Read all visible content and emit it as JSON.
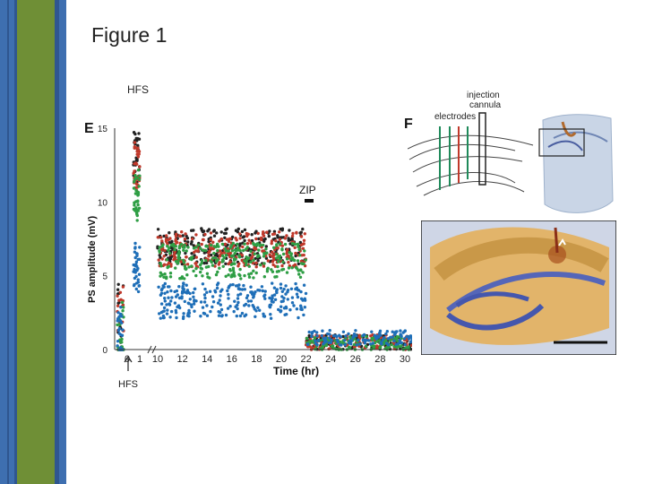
{
  "slide": {
    "title": "Figure 1"
  },
  "colors": {
    "sidebar_blue": "#3e6fb0",
    "sidebar_green": "#6f8f36",
    "black_series": "#222222",
    "red_series": "#c0392b",
    "green_series": "#2e9e44",
    "blue_series": "#1f6fb8"
  },
  "panel_e": {
    "label": "E",
    "top_annotation": "HFS",
    "arrow_annotation": "HFS",
    "zip_annotation": "ZIP"
  },
  "panel_f": {
    "label": "F",
    "electrodes_label": "electrodes",
    "cannula_label_line1": "injection",
    "cannula_label_line2": "cannula"
  },
  "chart_data": {
    "type": "scatter",
    "title": "",
    "xlabel": "Time (hr)",
    "ylabel": "PS amplitude (mV)",
    "ylim": [
      0,
      15
    ],
    "yticks": [
      0,
      5,
      10,
      15
    ],
    "xtick_labels": [
      "0",
      "1",
      "10",
      "12",
      "14",
      "16",
      "18",
      "20",
      "22",
      "24",
      "26",
      "28",
      "30"
    ],
    "x_break": "axis break between 1 and 10 hr",
    "grid": false,
    "series": [
      {
        "color": "black",
        "baseline_mean": 1.5,
        "post_hfs_peak_mean": 13,
        "ltp_mean": 7.0,
        "post_zip_mean": 0.5
      },
      {
        "color": "red",
        "baseline_mean": 1.5,
        "post_hfs_peak_mean": 12.5,
        "ltp_mean": 6.8,
        "post_zip_mean": 0.5
      },
      {
        "color": "green",
        "baseline_mean": 1.2,
        "post_hfs_peak_mean": 10.5,
        "ltp_mean": 6.0,
        "post_zip_mean": 0.4
      },
      {
        "color": "blue",
        "baseline_mean": 1.0,
        "post_hfs_peak_mean": 5.5,
        "ltp_mean": 3.3,
        "post_zip_mean": 0.8
      }
    ],
    "events": [
      {
        "label": "HFS",
        "x": 0
      },
      {
        "label": "ZIP",
        "x": 22
      }
    ]
  }
}
